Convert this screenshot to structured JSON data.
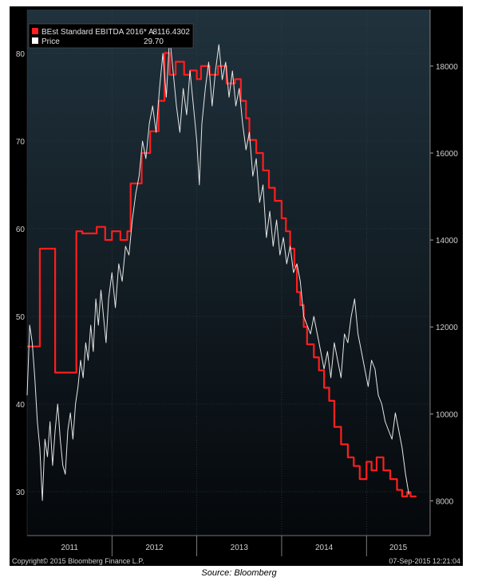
{
  "source_caption": "Source: Bloomberg",
  "footer": {
    "copyright": "Copyright© 2015 Bloomberg Finance L.P.",
    "timestamp": "07-Sep-2015 12:21:04"
  },
  "colors": {
    "background": "#000000",
    "plot_top": "#20323d",
    "plot_bottom": "#05080b",
    "ebitda_line": "#ff1e1e",
    "price_line": "#e6e6e6",
    "text": "#d0d0d0",
    "grid": "#3a4650"
  },
  "chart_data": {
    "type": "line",
    "grid": true,
    "legend_position": "top-left",
    "x_categories": [
      "2011",
      "2012",
      "2013",
      "2014",
      "2015"
    ],
    "x_range": [
      2011.0,
      2015.75
    ],
    "left_axis": {
      "ticks": [
        30,
        40,
        50,
        60,
        70,
        80
      ],
      "range": [
        25,
        85
      ]
    },
    "right_axis": {
      "ticks": [
        8000,
        10000,
        12000,
        14000,
        16000,
        18000
      ],
      "range": [
        7200,
        19300
      ]
    },
    "legend": [
      {
        "label": "BEst Standard EBITDA 2016* A",
        "value": "8116.4302",
        "color": "#ff1e1e"
      },
      {
        "label": "Price",
        "value": "29.70",
        "color": "#ffffff"
      }
    ],
    "series": [
      {
        "name": "BEst Standard EBITDA 2016* A",
        "axis": "right",
        "step": true,
        "points": [
          [
            2011.0,
            11550
          ],
          [
            2011.15,
            13800
          ],
          [
            2011.33,
            10950
          ],
          [
            2011.58,
            14200
          ],
          [
            2011.65,
            14150
          ],
          [
            2011.82,
            14300
          ],
          [
            2011.92,
            14000
          ],
          [
            2012.0,
            14200
          ],
          [
            2012.1,
            14000
          ],
          [
            2012.18,
            14200
          ],
          [
            2012.22,
            15300
          ],
          [
            2012.35,
            16000
          ],
          [
            2012.45,
            16500
          ],
          [
            2012.55,
            17200
          ],
          [
            2012.62,
            18300
          ],
          [
            2012.68,
            17800
          ],
          [
            2012.75,
            18100
          ],
          [
            2012.85,
            17800
          ],
          [
            2012.92,
            17900
          ],
          [
            2013.0,
            17700
          ],
          [
            2013.05,
            18000
          ],
          [
            2013.15,
            17800
          ],
          [
            2013.25,
            18000
          ],
          [
            2013.35,
            17600
          ],
          [
            2013.45,
            17700
          ],
          [
            2013.52,
            17200
          ],
          [
            2013.58,
            16800
          ],
          [
            2013.62,
            16300
          ],
          [
            2013.7,
            16000
          ],
          [
            2013.78,
            15600
          ],
          [
            2013.85,
            15200
          ],
          [
            2013.92,
            14900
          ],
          [
            2014.0,
            14500
          ],
          [
            2014.05,
            14200
          ],
          [
            2014.1,
            13800
          ],
          [
            2014.15,
            13400
          ],
          [
            2014.18,
            12800
          ],
          [
            2014.22,
            12500
          ],
          [
            2014.26,
            12000
          ],
          [
            2014.3,
            11600
          ],
          [
            2014.38,
            11300
          ],
          [
            2014.44,
            11000
          ],
          [
            2014.5,
            10600
          ],
          [
            2014.56,
            10300
          ],
          [
            2014.62,
            9700
          ],
          [
            2014.7,
            9300
          ],
          [
            2014.78,
            9000
          ],
          [
            2014.85,
            8800
          ],
          [
            2014.92,
            8500
          ],
          [
            2015.0,
            8900
          ],
          [
            2015.06,
            8700
          ],
          [
            2015.12,
            9000
          ],
          [
            2015.2,
            8700
          ],
          [
            2015.28,
            8500
          ],
          [
            2015.36,
            8250
          ],
          [
            2015.42,
            8100
          ],
          [
            2015.48,
            8200
          ],
          [
            2015.52,
            8100
          ],
          [
            2015.58,
            8116
          ]
        ]
      },
      {
        "name": "Price",
        "axis": "left",
        "step": false,
        "points": [
          [
            2011.0,
            41
          ],
          [
            2011.03,
            49
          ],
          [
            2011.06,
            47
          ],
          [
            2011.09,
            43
          ],
          [
            2011.12,
            38
          ],
          [
            2011.15,
            35
          ],
          [
            2011.18,
            29
          ],
          [
            2011.21,
            36
          ],
          [
            2011.24,
            34
          ],
          [
            2011.27,
            38
          ],
          [
            2011.3,
            33
          ],
          [
            2011.33,
            37
          ],
          [
            2011.36,
            40
          ],
          [
            2011.39,
            36
          ],
          [
            2011.42,
            33
          ],
          [
            2011.45,
            32
          ],
          [
            2011.48,
            37
          ],
          [
            2011.51,
            39
          ],
          [
            2011.54,
            36
          ],
          [
            2011.57,
            40
          ],
          [
            2011.6,
            42
          ],
          [
            2011.63,
            45
          ],
          [
            2011.66,
            43
          ],
          [
            2011.69,
            47
          ],
          [
            2011.72,
            45
          ],
          [
            2011.75,
            49
          ],
          [
            2011.78,
            46
          ],
          [
            2011.81,
            52
          ],
          [
            2011.84,
            49
          ],
          [
            2011.87,
            53
          ],
          [
            2011.9,
            50
          ],
          [
            2011.93,
            47
          ],
          [
            2011.96,
            52
          ],
          [
            2012.0,
            55
          ],
          [
            2012.04,
            51
          ],
          [
            2012.08,
            56
          ],
          [
            2012.12,
            54
          ],
          [
            2012.16,
            58
          ],
          [
            2012.2,
            57
          ],
          [
            2012.24,
            61
          ],
          [
            2012.28,
            64
          ],
          [
            2012.32,
            66
          ],
          [
            2012.36,
            70
          ],
          [
            2012.4,
            68
          ],
          [
            2012.44,
            72
          ],
          [
            2012.48,
            74
          ],
          [
            2012.52,
            71
          ],
          [
            2012.56,
            76
          ],
          [
            2012.6,
            80
          ],
          [
            2012.64,
            75
          ],
          [
            2012.68,
            82
          ],
          [
            2012.72,
            78
          ],
          [
            2012.76,
            74
          ],
          [
            2012.8,
            71
          ],
          [
            2012.84,
            76
          ],
          [
            2012.88,
            73
          ],
          [
            2012.92,
            78
          ],
          [
            2012.96,
            74
          ],
          [
            2013.0,
            70
          ],
          [
            2013.03,
            65
          ],
          [
            2013.06,
            72
          ],
          [
            2013.1,
            76
          ],
          [
            2013.14,
            79
          ],
          [
            2013.18,
            74
          ],
          [
            2013.22,
            78
          ],
          [
            2013.26,
            81
          ],
          [
            2013.3,
            77
          ],
          [
            2013.34,
            79
          ],
          [
            2013.38,
            75
          ],
          [
            2013.42,
            78
          ],
          [
            2013.46,
            74
          ],
          [
            2013.5,
            76
          ],
          [
            2013.54,
            72
          ],
          [
            2013.58,
            69
          ],
          [
            2013.62,
            71
          ],
          [
            2013.66,
            66
          ],
          [
            2013.7,
            68
          ],
          [
            2013.74,
            63
          ],
          [
            2013.78,
            65
          ],
          [
            2013.82,
            59
          ],
          [
            2013.86,
            62
          ],
          [
            2013.9,
            58
          ],
          [
            2013.94,
            61
          ],
          [
            2013.98,
            57
          ],
          [
            2014.02,
            59
          ],
          [
            2014.06,
            56
          ],
          [
            2014.1,
            58
          ],
          [
            2014.14,
            55
          ],
          [
            2014.18,
            56
          ],
          [
            2014.22,
            54
          ],
          [
            2014.26,
            50
          ],
          [
            2014.3,
            49
          ],
          [
            2014.34,
            48
          ],
          [
            2014.38,
            50
          ],
          [
            2014.42,
            48
          ],
          [
            2014.46,
            46
          ],
          [
            2014.5,
            44
          ],
          [
            2014.54,
            46
          ],
          [
            2014.58,
            43
          ],
          [
            2014.62,
            47
          ],
          [
            2014.66,
            45
          ],
          [
            2014.7,
            43
          ],
          [
            2014.74,
            48
          ],
          [
            2014.78,
            47
          ],
          [
            2014.82,
            50
          ],
          [
            2014.86,
            52
          ],
          [
            2014.9,
            48
          ],
          [
            2014.94,
            46
          ],
          [
            2014.98,
            44
          ],
          [
            2015.02,
            42
          ],
          [
            2015.06,
            45
          ],
          [
            2015.1,
            44
          ],
          [
            2015.14,
            41
          ],
          [
            2015.18,
            40
          ],
          [
            2015.22,
            38
          ],
          [
            2015.26,
            37
          ],
          [
            2015.3,
            36
          ],
          [
            2015.34,
            39
          ],
          [
            2015.38,
            37
          ],
          [
            2015.42,
            35
          ],
          [
            2015.46,
            32
          ],
          [
            2015.5,
            29.7
          ]
        ]
      }
    ]
  }
}
